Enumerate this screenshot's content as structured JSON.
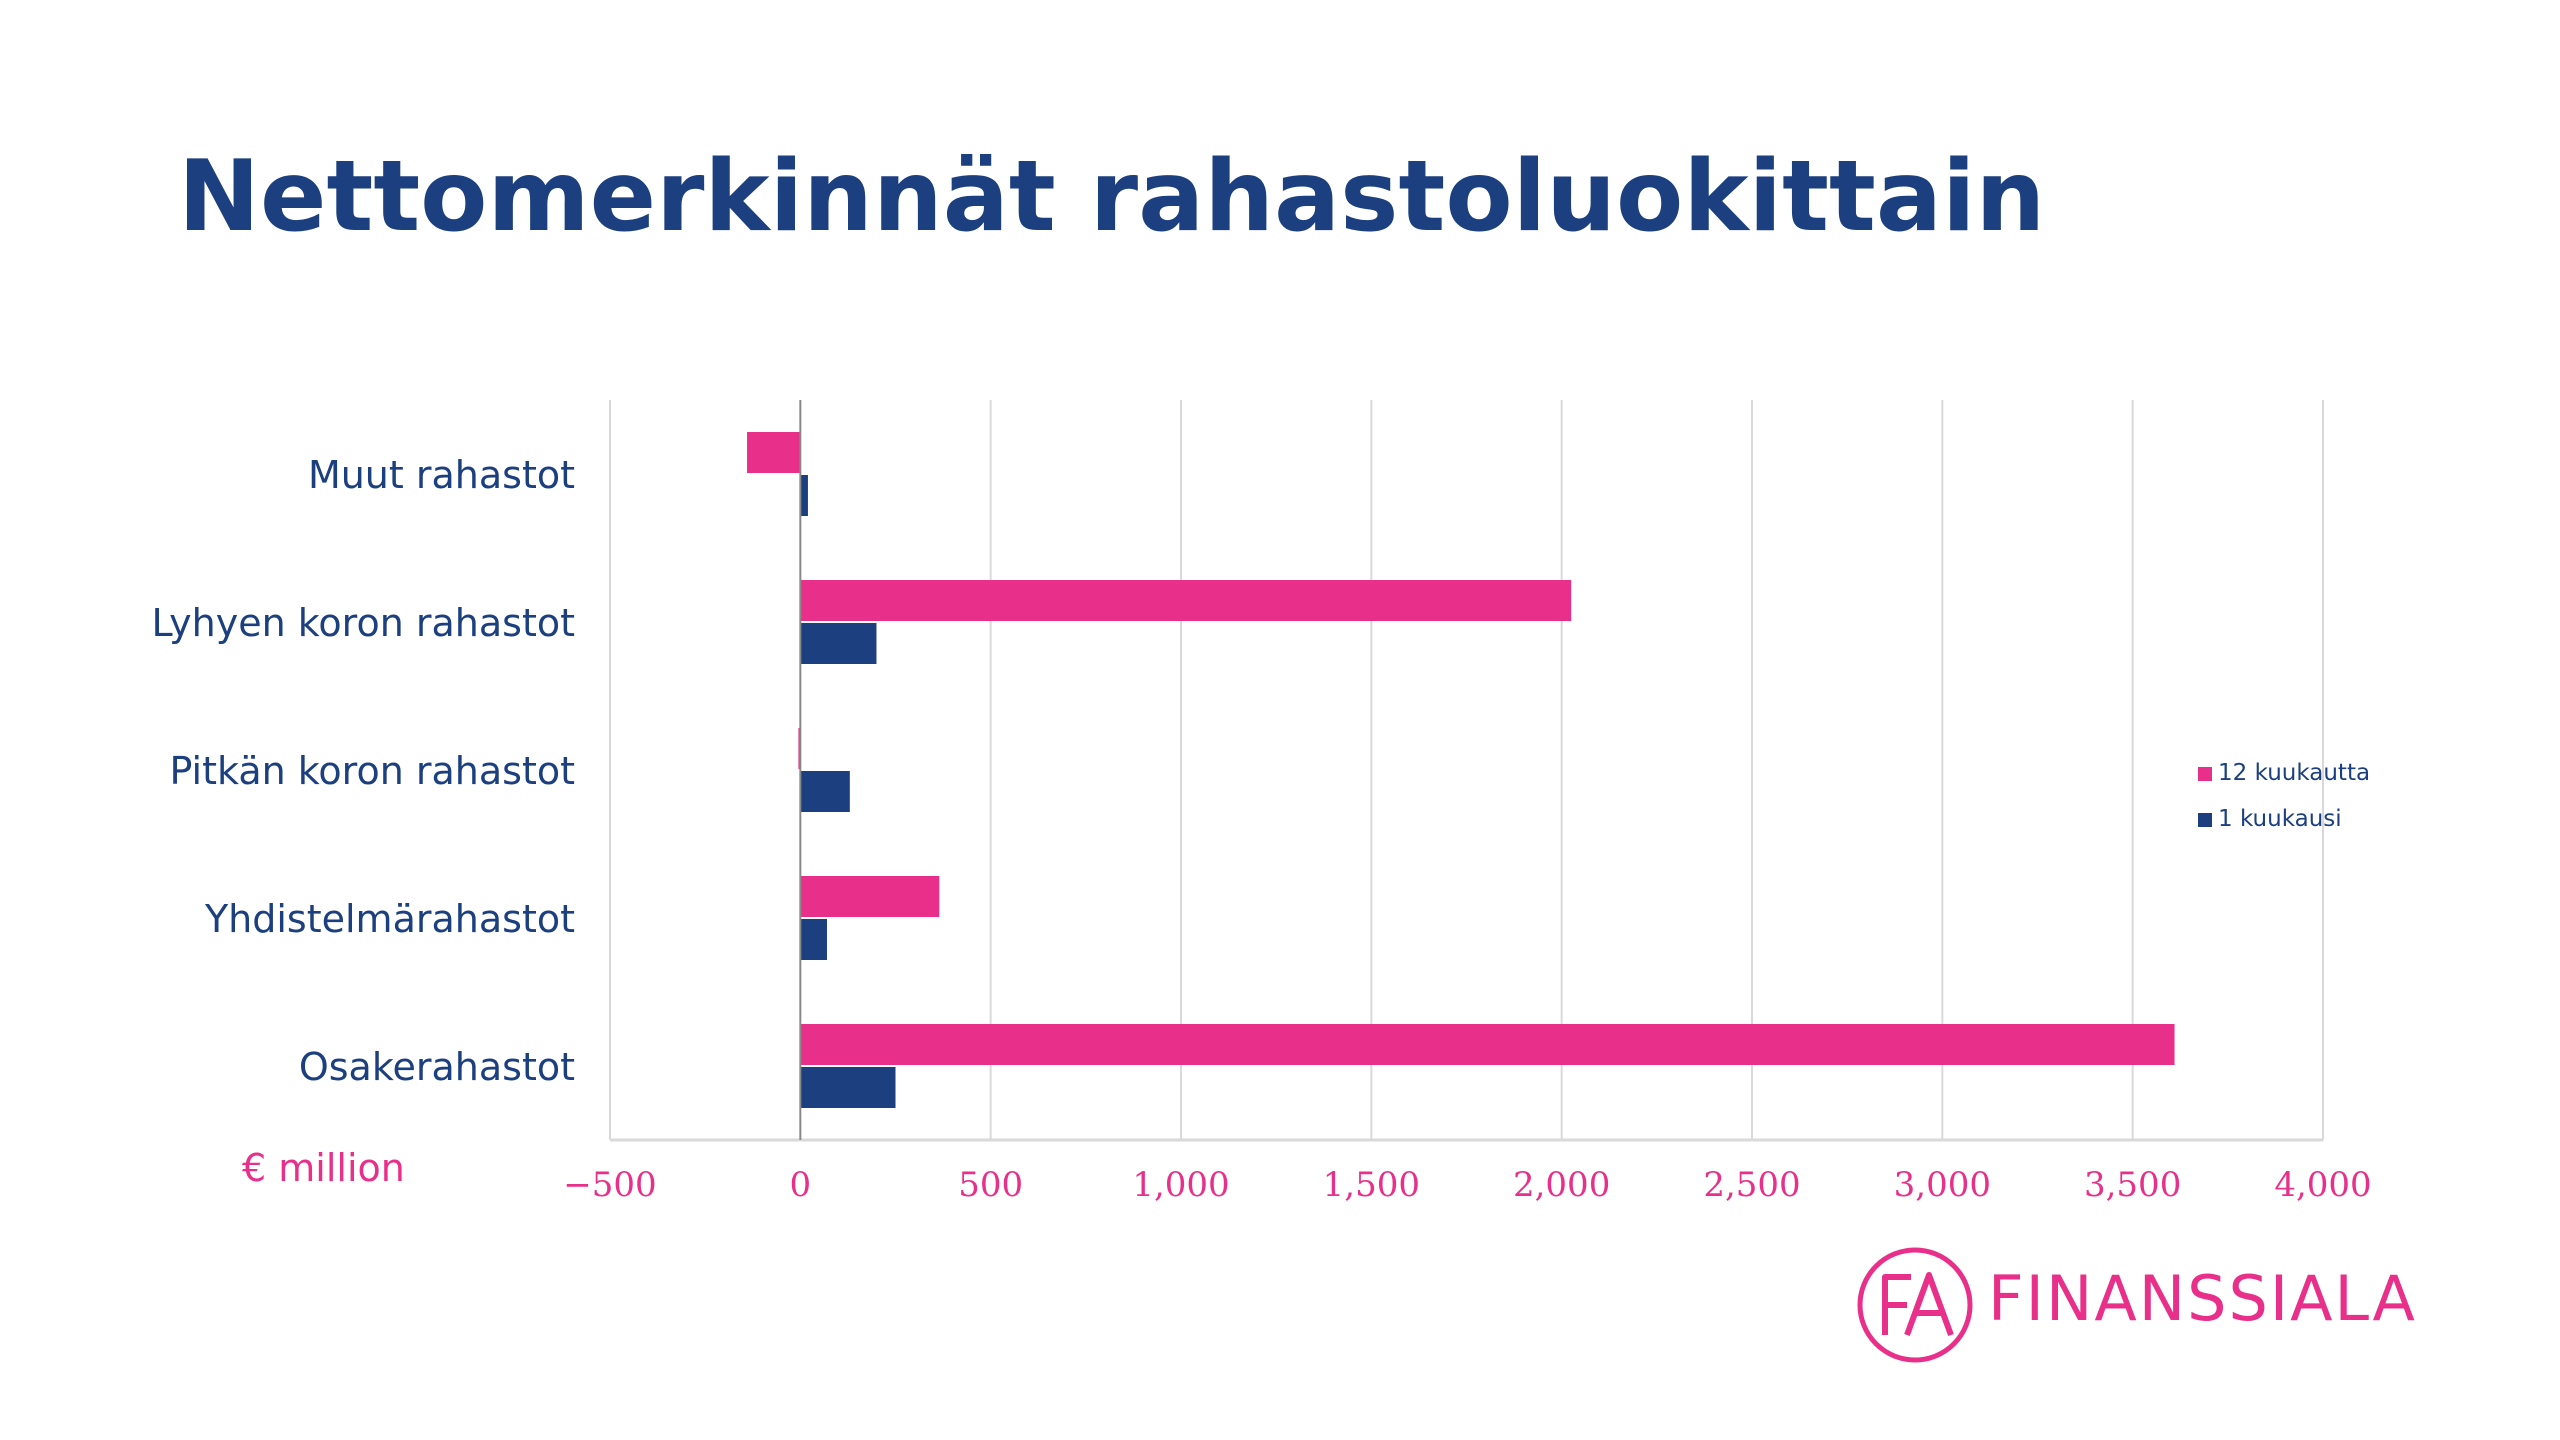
{
  "title": "Nettomerkinnät rahastoluokittain",
  "unit_label": "€ million",
  "logo": {
    "text": "FINANSSIALA",
    "mark": "FA"
  },
  "colors": {
    "accent": "#e8308a",
    "primary": "#1b3f7f",
    "grid": "#d9d9d9",
    "axis": "#888888"
  },
  "chart_data": {
    "type": "bar",
    "orientation": "horizontal",
    "categories": [
      "Muut rahastot",
      "Lyhyen koron rahastot",
      "Pitkän koron rahastot",
      "Yhdistelmärahastot",
      "Osakerahastot"
    ],
    "series": [
      {
        "name": "12 kuukautta",
        "color": "#e8308a",
        "values": [
          -140,
          2025,
          -5,
          365,
          3610
        ]
      },
      {
        "name": "1 kuukausi",
        "color": "#1b3f7f",
        "values": [
          20,
          200,
          130,
          70,
          250
        ]
      }
    ],
    "xlim": [
      -500,
      4000
    ],
    "xticks": [
      -500,
      0,
      500,
      1000,
      1500,
      2000,
      2500,
      3000,
      3500,
      4000
    ],
    "xtick_labels": [
      "−500",
      "0",
      "500",
      "1,000",
      "1,500",
      "2,000",
      "2,500",
      "3,000",
      "3,500",
      "4,000"
    ],
    "grid": true,
    "legend": "right"
  }
}
